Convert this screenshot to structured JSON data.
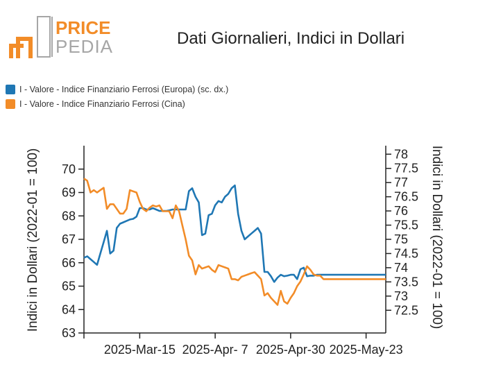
{
  "logo": {
    "word_top": "PRICE",
    "word_bottom": "PEDIA",
    "colors": {
      "orange": "#f28c28",
      "gray": "#a6a6a6"
    }
  },
  "chart_data": {
    "type": "line",
    "title": "Dati Giornalieri, Indici in Dollari",
    "x_tick_labels": [
      "2025-Mar-15",
      "2025-Apr- 7",
      "2025-Apr-30",
      "2025-May-23"
    ],
    "x_ticks": [
      17,
      40,
      63,
      86
    ],
    "x_range": [
      0,
      92
    ],
    "y_left": {
      "label": "Indici in Dollari (2022-01 = 100)",
      "range": [
        63,
        71
      ],
      "ticks": [
        63,
        64,
        65,
        66,
        67,
        68,
        69,
        70
      ]
    },
    "y_right": {
      "label": "Indici in Dollari (2022-01 = 100)",
      "range": [
        71.7,
        78.3
      ],
      "ticks": [
        72.5,
        73,
        73.5,
        74,
        74.5,
        75,
        75.5,
        76,
        76.5,
        77,
        77.5,
        78
      ]
    },
    "legend_placement": "top-left",
    "series": [
      {
        "name": "I - Valore - Indice Finanziario Ferrosi (Europa) (sc. dx.)",
        "axis": "right",
        "color": "#1f77b4",
        "x": [
          0,
          1,
          2,
          3,
          4,
          5,
          6,
          7,
          8,
          9,
          10,
          11,
          12,
          13,
          14,
          15,
          16,
          17,
          18,
          19,
          20,
          21,
          22,
          23,
          24,
          25,
          26,
          27,
          28,
          29,
          30,
          31,
          32,
          33,
          34,
          35,
          36,
          37,
          38,
          39,
          40,
          41,
          42,
          43,
          44,
          45,
          46,
          47,
          48,
          49,
          50,
          51,
          52,
          53,
          54,
          55,
          56,
          57,
          58,
          59,
          60,
          61,
          62,
          63,
          64,
          65,
          66,
          67,
          68,
          69,
          70,
          71,
          72,
          73,
          74,
          75,
          76,
          77,
          78,
          79,
          80,
          81,
          82,
          83,
          84,
          85,
          86,
          87,
          88,
          89,
          90,
          91,
          92
        ],
        "y": [
          74.35,
          74.4,
          74.3,
          74.2,
          74.1,
          74.5,
          74.9,
          75.3,
          74.5,
          74.6,
          75.4,
          75.55,
          75.6,
          75.65,
          75.7,
          75.72,
          75.8,
          76.1,
          76.1,
          76.05,
          76.05,
          76.1,
          76.05,
          76.0,
          76.0,
          76.0,
          76.02,
          76.05,
          76.05,
          76.05,
          76.05,
          76.05,
          76.7,
          76.8,
          76.5,
          76.3,
          75.15,
          75.2,
          75.85,
          75.9,
          76.2,
          76.35,
          76.3,
          76.5,
          76.6,
          76.8,
          76.9,
          75.9,
          75.3,
          75.0,
          75.1,
          75.2,
          75.3,
          75.4,
          75.2,
          73.85,
          73.85,
          73.7,
          73.5,
          73.65,
          73.75,
          73.7,
          73.72,
          73.75,
          73.75,
          73.6,
          73.95,
          74.0,
          73.7,
          73.72,
          73.72,
          73.75,
          73.75,
          73.75,
          73.75,
          73.75,
          73.75,
          73.75,
          73.75,
          73.75,
          73.75,
          73.75,
          73.75,
          73.75,
          73.75,
          73.75,
          73.75,
          73.75,
          73.75,
          73.75,
          73.75,
          73.75,
          73.75
        ]
      },
      {
        "name": "I - Valore - Indice Finanziario Ferrosi (Cina)",
        "axis": "left",
        "color": "#f28c28",
        "x": [
          0,
          1,
          2,
          3,
          4,
          5,
          6,
          7,
          8,
          9,
          10,
          11,
          12,
          13,
          14,
          15,
          16,
          17,
          18,
          19,
          20,
          21,
          22,
          23,
          24,
          25,
          26,
          27,
          28,
          29,
          30,
          31,
          32,
          33,
          34,
          35,
          36,
          37,
          38,
          39,
          40,
          41,
          42,
          43,
          44,
          45,
          46,
          47,
          48,
          49,
          50,
          51,
          52,
          53,
          54,
          55,
          56,
          57,
          58,
          59,
          60,
          61,
          62,
          63,
          64,
          65,
          66,
          67,
          68,
          69,
          70,
          71,
          72,
          73,
          74,
          75,
          76,
          77,
          78,
          79,
          80,
          81,
          82,
          83,
          84,
          85,
          86,
          87,
          88,
          89,
          90,
          91,
          92
        ],
        "y": [
          69.6,
          69.5,
          69.0,
          69.1,
          69.0,
          69.1,
          69.2,
          68.3,
          68.5,
          68.5,
          68.3,
          68.1,
          68.1,
          68.3,
          69.1,
          69.05,
          69.0,
          68.6,
          68.3,
          68.2,
          68.35,
          68.45,
          68.4,
          68.45,
          68.2,
          68.2,
          68.2,
          67.9,
          68.45,
          68.2,
          67.6,
          67.0,
          66.3,
          66.1,
          65.5,
          65.9,
          65.75,
          65.8,
          65.85,
          65.7,
          65.6,
          65.9,
          65.85,
          65.8,
          65.75,
          65.3,
          65.3,
          65.25,
          65.4,
          65.45,
          65.5,
          65.55,
          65.6,
          65.45,
          65.3,
          64.6,
          64.7,
          64.5,
          64.35,
          64.2,
          64.8,
          64.35,
          64.25,
          64.5,
          64.7,
          65.0,
          65.2,
          65.5,
          65.85,
          65.7,
          65.5,
          65.45,
          65.45,
          65.3,
          65.3,
          65.3,
          65.3,
          65.3,
          65.3,
          65.3,
          65.3,
          65.3,
          65.3,
          65.3,
          65.3,
          65.3,
          65.3,
          65.3,
          65.3,
          65.3,
          65.3,
          65.3,
          65.3
        ]
      }
    ]
  }
}
